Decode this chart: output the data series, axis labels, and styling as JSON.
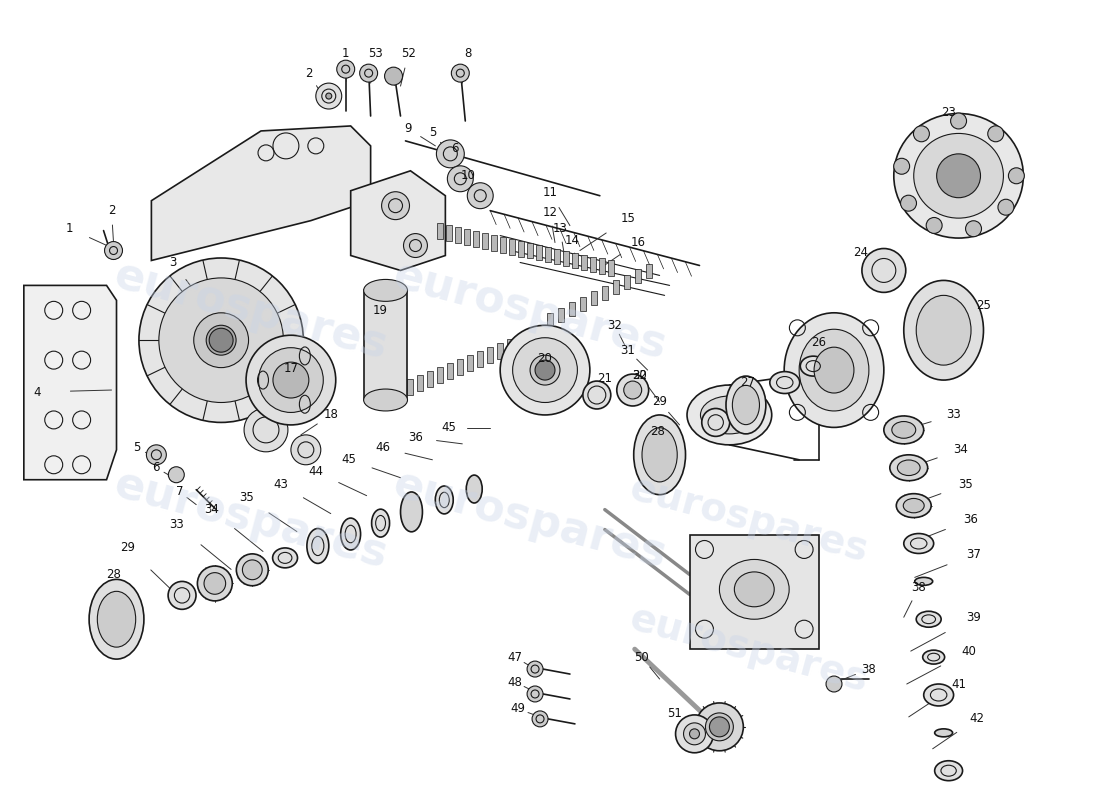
{
  "background_color": "#ffffff",
  "watermark_text": "eurospares",
  "watermark_color": "#c8d4e8",
  "watermark_alpha": 0.38,
  "line_color": "#1a1a1a",
  "fig_width": 11.0,
  "fig_height": 8.0
}
